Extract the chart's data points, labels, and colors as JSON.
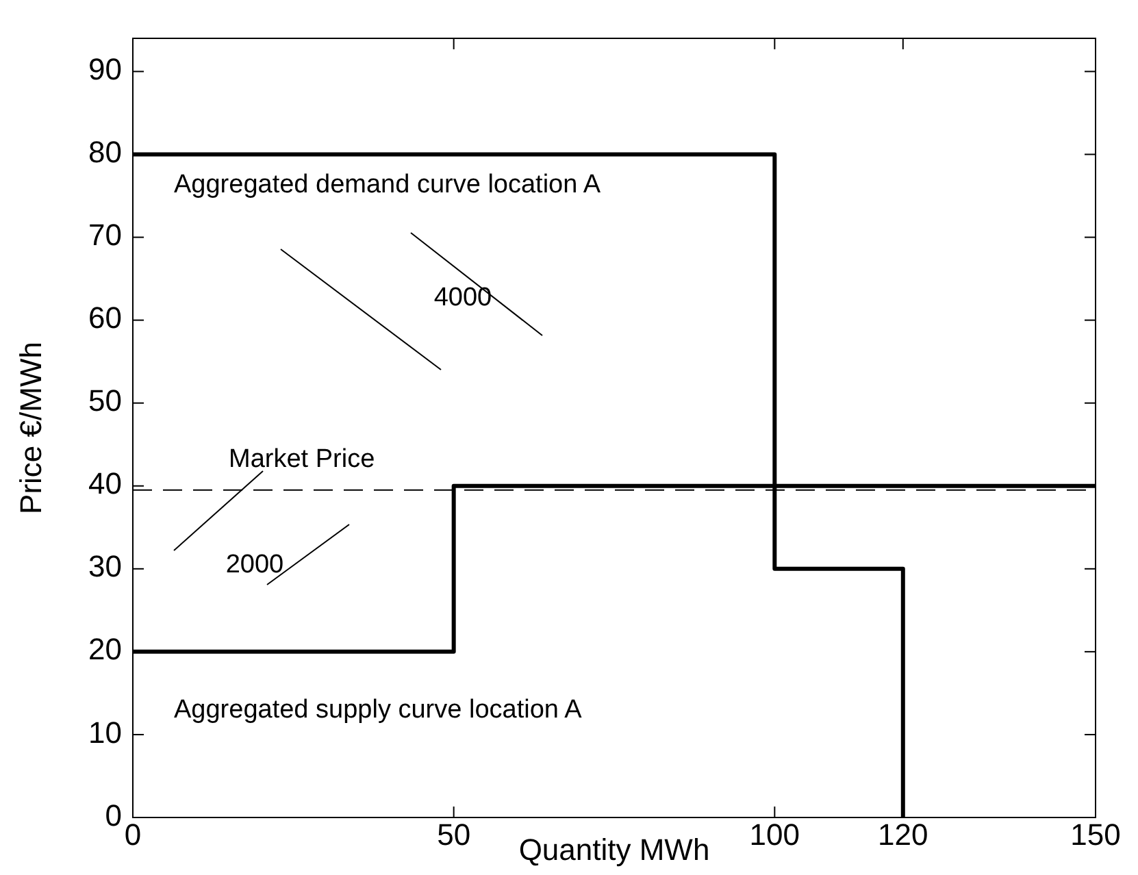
{
  "chart_data": {
    "type": "line",
    "xlabel": "Quantity MWh",
    "ylabel": "Price €/MWh",
    "xlim": [
      0,
      150
    ],
    "ylim": [
      0,
      94
    ],
    "xticks": [
      0,
      50,
      100,
      120,
      150
    ],
    "yticks": [
      0,
      10,
      20,
      30,
      40,
      50,
      60,
      70,
      80,
      90
    ],
    "grid": false,
    "marker": "none",
    "line_style": "solid",
    "series": [
      {
        "name": "Aggregated demand curve location A",
        "color": "#000000",
        "x": [
          0,
          100,
          100,
          120,
          120
        ],
        "values": [
          80,
          80,
          30,
          30,
          0
        ]
      },
      {
        "name": "Aggregated supply curve location A",
        "color": "#000000",
        "x": [
          0,
          50,
          50,
          150
        ],
        "values": [
          20,
          20,
          40,
          40
        ]
      }
    ],
    "ref_lines": [
      {
        "axis": "y",
        "value": 39.5,
        "label": "Market Price",
        "line_style": "dashed",
        "color": "#000000"
      }
    ],
    "annotations": [
      "4000",
      "2000"
    ]
  }
}
